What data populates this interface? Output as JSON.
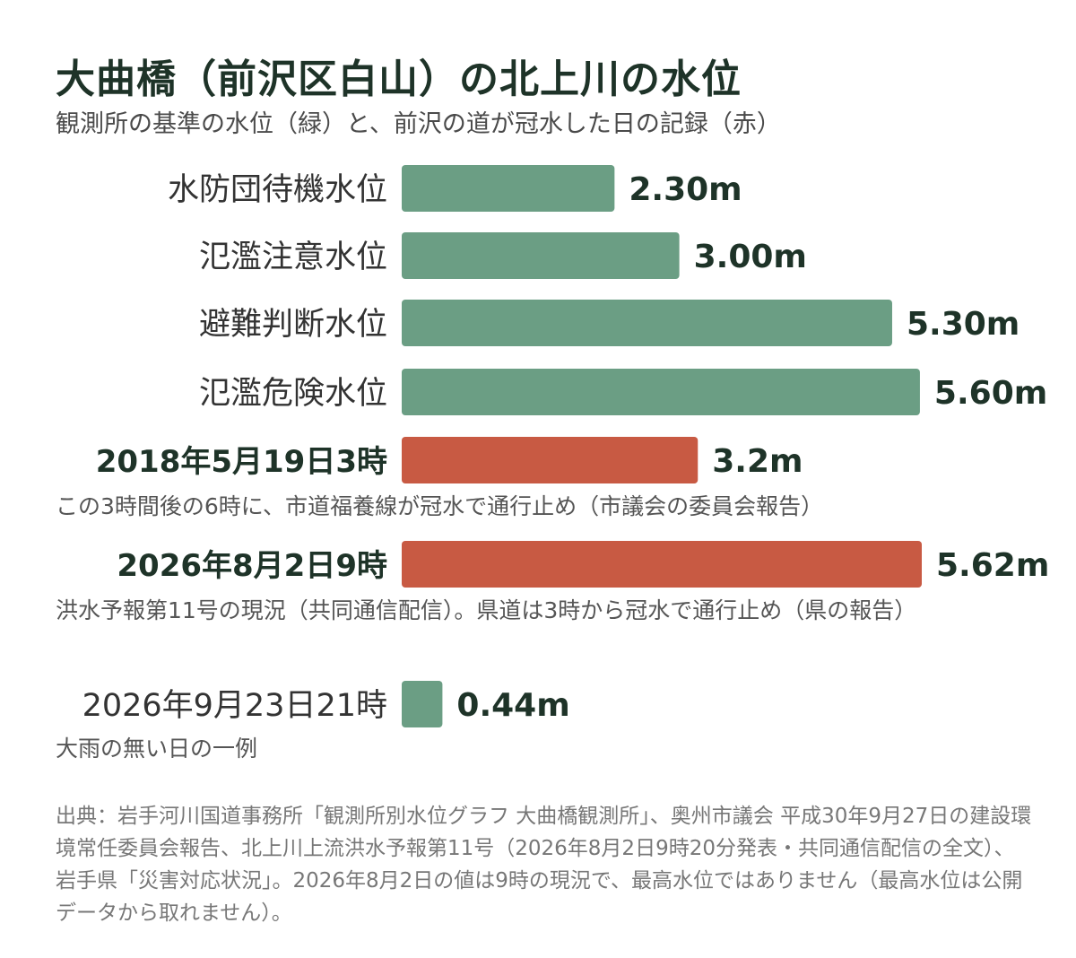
{
  "title": "大曲橋（前沢区白山）の北上川の水位",
  "subtitle": "観測所の基準の水位（緑）と、前沢の道が冠水した日の記録（赤）",
  "colors": {
    "green": "#6b9e84",
    "red": "#c85a43",
    "text_dark": "#1e3328"
  },
  "chart_data": {
    "type": "bar",
    "orientation": "horizontal",
    "unit": "m",
    "categories": [
      "水防団待機水位",
      "氾濫注意水位",
      "避難判断水位",
      "氾濫危険水位",
      "2018年5月19日3時",
      "2026年8月2日9時",
      "2026年9月23日21時"
    ],
    "values": [
      2.3,
      3.0,
      5.3,
      5.6,
      3.2,
      5.62,
      0.44
    ],
    "value_labels": [
      "2.30m",
      "3.00m",
      "5.30m",
      "5.60m",
      "3.2m",
      "5.62m",
      "0.44m"
    ],
    "bar_colors": [
      "green",
      "green",
      "green",
      "green",
      "red",
      "red",
      "green"
    ],
    "label_bold": [
      false,
      false,
      false,
      false,
      true,
      true,
      false
    ],
    "xlim": [
      0,
      5.62
    ],
    "grid": false,
    "legend": "none"
  },
  "notes": {
    "flood_2018": "この3時間後の6時に、市道福養線が冠水で通行止め（市議会の委員会報告）",
    "flood_2026": "洪水予報第11号の現況（共同通信配信）。県道は3時から冠水で通行止め（県の報告）",
    "normal_2026": "大雨の無い日の一例"
  },
  "source": "出典：岩手河川国道事務所「観測所別水位グラフ 大曲橋観測所」、奥州市議会 平成30年9月27日の建設環境常任委員会報告、北上川上流洪水予報第11号（2026年8月2日9時20分発表・共同通信配信の全文）、岩手県「災害対応状況」。2026年8月2日の値は9時の現況で、最高水位ではありません（最高水位は公開データから取れません）。"
}
